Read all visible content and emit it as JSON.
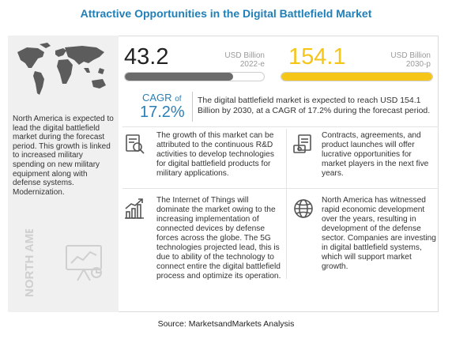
{
  "title": "Attractive Opportunities in the Digital Battlefield Market",
  "left_panel": {
    "map_icon": "world-map-icon",
    "text": "North America is expected to lead the digital battlefield market during the forecast period. This growth is linked to increased military spending on new military equipment along with defense systems. Modernization.",
    "region_label": "NORTH AMERICA",
    "region_icon": "analytics-presentation-icon"
  },
  "metrics": [
    {
      "value": "43.2",
      "unit": "USD Billion",
      "period": "2022-e",
      "fill_fraction": 0.78,
      "color": "#6b6b6b"
    },
    {
      "value": "154.1",
      "unit": "USD Billion",
      "period": "2030-p",
      "fill_fraction": 1.0,
      "color": "#f5c518"
    }
  ],
  "cagr": {
    "label": "CAGR",
    "of": "of",
    "value": "17.2%",
    "text": "The digital battlefield market is expected to reach USD  154.1 Billion by 2030, at a CAGR of  17.2% during the forecast period."
  },
  "cards": [
    {
      "icon": "research-document-icon",
      "text": "The growth of this market can be attributed to the continuous R&D activities to develop technologies for digital battlefield products  for military applications."
    },
    {
      "icon": "contract-money-icon",
      "text": "Contracts, agreements, and product launches will offer lucrative opportunities for market players in the next five years."
    },
    {
      "icon": "growth-chart-icon",
      "text": "The Internet of Things will dominate the market owing to the increasing implementation of connected devices by defense forces across the globe. The 5G technologies projected lead, this is due to ability of the technology to connect entire the digital battlefield process and optimize its operation."
    },
    {
      "icon": "globe-icon",
      "text": "North America has witnessed rapid economic development over the years, resulting in development of the defense sector. Companies are investing in digital battlefield systems, which will support market growth."
    }
  ],
  "source": "Source: MarketsandMarkets Analysis"
}
